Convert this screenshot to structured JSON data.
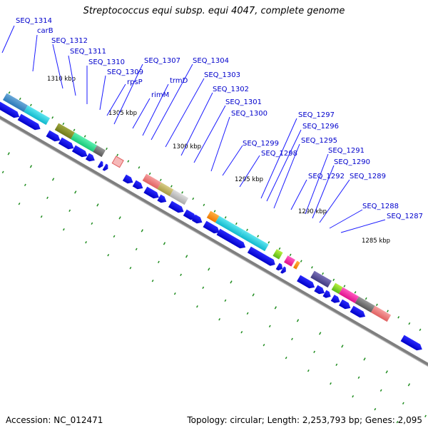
{
  "title": "Streptococcus equi subsp. equi 4047, complete genome",
  "accession_text": "Accession: NC_012471",
  "topology_text": "Topology: circular; Length: 2,253,793 bp; Genes: 2,095",
  "kbp_labels": [
    "1310 kbp",
    "1305 kbp",
    "1300 kbp",
    "1295 kbp",
    "1290 kbp",
    "1285 kbp"
  ],
  "gene_labels": [
    "SEQ_1314",
    "carB",
    "SEQ_1312",
    "SEQ_1311",
    "SEQ_1310",
    "SEQ_1309",
    "rpsP",
    "SEQ_1307",
    "rimM",
    "trmD",
    "SEQ_1304",
    "SEQ_1303",
    "SEQ_1302",
    "SEQ_1301",
    "SEQ_1300",
    "SEQ_1299",
    "SEQ_1298",
    "SEQ_1297",
    "SEQ_1296",
    "SEQ_1295",
    "SEQ_1292",
    "SEQ_1291",
    "SEQ_1290",
    "SEQ_1289",
    "SEQ_1288",
    "SEQ_1287"
  ],
  "colors": {
    "label_text": "#0000cc",
    "leader_line": "#1a1aff",
    "arrow": "#0000ee",
    "backbone": "#7f7f7f",
    "tick": "#1e8c1e"
  }
}
